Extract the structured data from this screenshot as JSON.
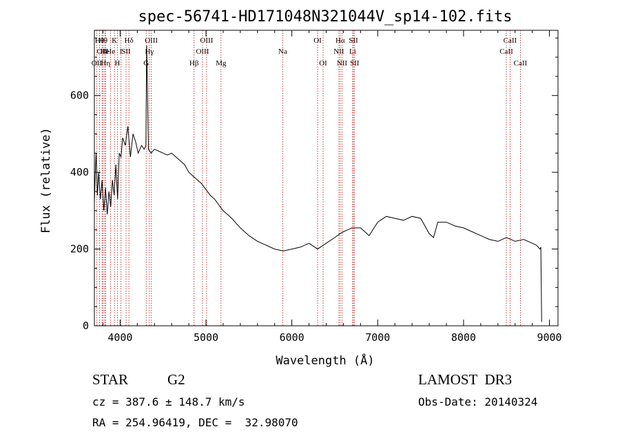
{
  "chart_data": {
    "type": "line",
    "title": "spec-56741-HD171048N321044V_sp14-102.fits",
    "xlabel": "Wavelength (Å)",
    "ylabel": "Flux (relative)",
    "xlim": [
      3700,
      9100
    ],
    "ylim": [
      0,
      770
    ],
    "xticks": [
      4000,
      5000,
      6000,
      7000,
      8000,
      9000
    ],
    "yticks": [
      0,
      200,
      400,
      600
    ],
    "grid": false,
    "line_color": "#000000",
    "marker_color": "#c00000",
    "series": [
      {
        "x": [
          3700,
          3710,
          3720,
          3735,
          3750,
          3770,
          3790,
          3810,
          3830,
          3850,
          3870,
          3890,
          3910,
          3930,
          3950,
          3970,
          3990,
          4010,
          4030,
          4060,
          4090,
          4120,
          4150,
          4180,
          4210,
          4250,
          4280,
          4300,
          4310,
          4330,
          4360,
          4400,
          4450,
          4500,
          4550,
          4600,
          4650,
          4700,
          4750,
          4800,
          4850,
          4900,
          4950,
          5000,
          5050,
          5100,
          5150,
          5200,
          5250,
          5300,
          5400,
          5500,
          5600,
          5700,
          5800,
          5900,
          6000,
          6100,
          6200,
          6300,
          6400,
          6500,
          6560,
          6600,
          6650,
          6700,
          6800,
          6900,
          7000,
          7100,
          7200,
          7300,
          7400,
          7500,
          7600,
          7650,
          7700,
          7800,
          7900,
          8000,
          8100,
          8200,
          8300,
          8400,
          8500,
          8550,
          8600,
          8700,
          8800,
          8850,
          8890,
          8900,
          8910
        ],
        "y": [
          320,
          390,
          450,
          340,
          400,
          330,
          380,
          300,
          360,
          290,
          350,
          310,
          380,
          340,
          420,
          330,
          450,
          440,
          490,
          470,
          520,
          440,
          500,
          480,
          450,
          470,
          460,
          470,
          730,
          460,
          450,
          460,
          455,
          450,
          445,
          450,
          440,
          430,
          420,
          400,
          390,
          380,
          370,
          355,
          340,
          330,
          315,
          300,
          290,
          280,
          255,
          235,
          220,
          210,
          200,
          195,
          200,
          205,
          215,
          200,
          215,
          230,
          240,
          245,
          250,
          255,
          255,
          235,
          270,
          285,
          280,
          275,
          285,
          280,
          240,
          230,
          270,
          270,
          260,
          255,
          245,
          235,
          225,
          220,
          230,
          225,
          220,
          225,
          215,
          210,
          200,
          205,
          10
        ]
      }
    ],
    "lines": [
      {
        "wl": 3727,
        "label": "OII",
        "row": 3
      },
      {
        "wl": 3760,
        "label": "Hθ",
        "row": 1
      },
      {
        "wl": 3789,
        "label": "OII",
        "row": 2
      },
      {
        "wl": 3800,
        "label": "Hθ",
        "row": 1
      },
      {
        "wl": 3820,
        "label": "He",
        "row": 2
      },
      {
        "wl": 3830,
        "label": "Hη",
        "row": 3
      },
      {
        "wl": 3889,
        "label": "He",
        "row": 2
      },
      {
        "wl": 3934,
        "label": "K",
        "row": 1
      },
      {
        "wl": 3968,
        "label": "H",
        "row": 3
      },
      {
        "wl": 4010,
        "label": "I",
        "row": 2
      },
      {
        "wl": 4069,
        "label": "SII",
        "row": 2
      },
      {
        "wl": 4102,
        "label": "Hδ",
        "row": 1
      },
      {
        "wl": 4304,
        "label": "G",
        "row": 3
      },
      {
        "wl": 4340,
        "label": "Hγ",
        "row": 2
      },
      {
        "wl": 4363,
        "label": "OIII",
        "row": 1
      },
      {
        "wl": 4861,
        "label": "Hβ",
        "row": 3
      },
      {
        "wl": 4959,
        "label": "OIII",
        "row": 2
      },
      {
        "wl": 5007,
        "label": "OIII",
        "row": 1
      },
      {
        "wl": 5175,
        "label": "Mg",
        "row": 3
      },
      {
        "wl": 5893,
        "label": "Na",
        "row": 2
      },
      {
        "wl": 6300,
        "label": "OI",
        "row": 1
      },
      {
        "wl": 6364,
        "label": "OI",
        "row": 3
      },
      {
        "wl": 6548,
        "label": "NII",
        "row": 2
      },
      {
        "wl": 6563,
        "label": "Hα",
        "row": 1
      },
      {
        "wl": 6584,
        "label": "NII",
        "row": 3
      },
      {
        "wl": 6708,
        "label": "Li",
        "row": 2
      },
      {
        "wl": 6717,
        "label": "SII",
        "row": 1
      },
      {
        "wl": 6731,
        "label": "SII",
        "row": 3
      },
      {
        "wl": 8498,
        "label": "CaII",
        "row": 2
      },
      {
        "wl": 8542,
        "label": "CaII",
        "row": 1
      },
      {
        "wl": 8662,
        "label": "CaII",
        "row": 3
      }
    ]
  },
  "info": {
    "object_class": "STAR",
    "subclass": "G2",
    "survey": "LAMOST  DR3",
    "cz": "cz = 387.6 ± 148.7 km/s",
    "obs_date": "Obs-Date: 20140324",
    "coords": "RA = 254.96419, DEC =  32.98070"
  }
}
